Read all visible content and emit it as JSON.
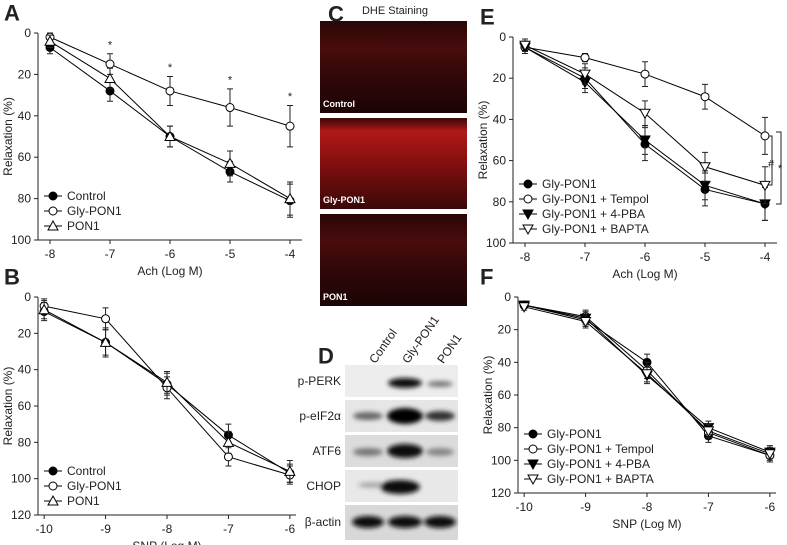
{
  "chart_data": [
    {
      "type": "line",
      "panel": "A",
      "xlabel": "Ach (Log M)",
      "ylabel": "Relaxation (%)",
      "x": [
        -8,
        -7,
        -6,
        -5,
        -4
      ],
      "xlim": [
        -8.2,
        -3.8
      ],
      "xticks": [
        -8,
        -7,
        -6,
        -5,
        -4
      ],
      "ylim": [
        0,
        100
      ],
      "yticks": [
        0,
        20,
        40,
        60,
        80,
        100
      ],
      "invert_y": true,
      "legend": "lower left",
      "series": [
        {
          "name": "Control",
          "color": "#000000",
          "marker": "circle-filled",
          "values": [
            7,
            28,
            50,
            67,
            81
          ],
          "errors": [
            3,
            5,
            5,
            5,
            8
          ]
        },
        {
          "name": "Gly-PON1",
          "color": "#000000",
          "marker": "circle-open",
          "values": [
            2,
            15,
            28,
            36,
            45
          ],
          "errors": [
            2,
            5,
            7,
            9,
            10
          ]
        },
        {
          "name": "PON1",
          "color": "#000000",
          "marker": "triangle-up-open",
          "values": [
            4,
            22,
            50,
            63,
            80
          ],
          "errors": [
            3,
            5,
            5,
            6,
            8
          ]
        }
      ],
      "annotations": [
        {
          "text": "*",
          "x": -7,
          "y": 6
        },
        {
          "text": "*",
          "x": -6,
          "y": 17
        },
        {
          "text": "*",
          "x": -5,
          "y": 23
        },
        {
          "text": "*",
          "x": -4,
          "y": 31
        }
      ]
    },
    {
      "type": "line",
      "panel": "B",
      "xlabel": "SNP (Log M)",
      "ylabel": "Relaxation (%)",
      "x": [
        -10,
        -9,
        -8,
        -7,
        -6
      ],
      "xlim": [
        -10.1,
        -5.9
      ],
      "xticks": [
        -10,
        -9,
        -8,
        -7,
        -6
      ],
      "ylim": [
        0,
        120
      ],
      "yticks": [
        0,
        20,
        40,
        60,
        80,
        100,
        120
      ],
      "invert_y": true,
      "legend": "lower left",
      "series": [
        {
          "name": "Control",
          "color": "#000000",
          "marker": "circle-filled",
          "values": [
            8,
            25,
            48,
            76,
            97
          ],
          "errors": [
            5,
            8,
            6,
            6,
            5
          ]
        },
        {
          "name": "Gly-PON1",
          "color": "#000000",
          "marker": "circle-open",
          "values": [
            5,
            12,
            50,
            88,
            98
          ],
          "errors": [
            4,
            6,
            6,
            5,
            5
          ]
        },
        {
          "name": "PON1",
          "color": "#000000",
          "marker": "triangle-up-open",
          "values": [
            7,
            25,
            47,
            80,
            96
          ],
          "errors": [
            5,
            7,
            6,
            6,
            6
          ]
        }
      ]
    },
    {
      "type": "line",
      "panel": "E",
      "xlabel": "Ach (Log M)",
      "ylabel": "Relaxation (%)",
      "x": [
        -8,
        -7,
        -6,
        -5,
        -4
      ],
      "xlim": [
        -8.2,
        -3.8
      ],
      "xticks": [
        -8,
        -7,
        -6,
        -5,
        -4
      ],
      "ylim": [
        0,
        100
      ],
      "yticks": [
        0,
        20,
        40,
        60,
        80,
        100
      ],
      "invert_y": true,
      "legend": "lower left",
      "series": [
        {
          "name": "Gly-PON1",
          "color": "#000000",
          "marker": "circle-filled",
          "values": [
            5,
            20,
            52,
            74,
            81
          ],
          "errors": [
            3,
            5,
            8,
            8,
            8
          ]
        },
        {
          "name": "Gly-PON1 + Tempol",
          "color": "#000000",
          "marker": "circle-open",
          "values": [
            5,
            10,
            18,
            29,
            48
          ],
          "errors": [
            2,
            2,
            6,
            6,
            9
          ]
        },
        {
          "name": "Gly-PON1 + 4-PBA",
          "color": "#000000",
          "marker": "triangle-down-filled",
          "values": [
            5,
            22,
            50,
            72,
            81
          ],
          "errors": [
            3,
            5,
            7,
            7,
            8
          ]
        },
        {
          "name": "Gly-PON1 + BAPTA",
          "color": "#000000",
          "marker": "triangle-down-open",
          "values": [
            4,
            18,
            37,
            63,
            72
          ],
          "errors": [
            3,
            5,
            6,
            7,
            9
          ]
        }
      ],
      "annotations": [
        {
          "text": "#",
          "x": -3.9,
          "y": 62
        },
        {
          "text": "*",
          "x": -3.75,
          "y": 64
        }
      ]
    },
    {
      "type": "line",
      "panel": "F",
      "xlabel": "SNP (Log M)",
      "ylabel": "Relaxation (%)",
      "x": [
        -10,
        -9,
        -8,
        -7,
        -6
      ],
      "xlim": [
        -10.1,
        -5.9
      ],
      "xticks": [
        -10,
        -9,
        -8,
        -7,
        -6
      ],
      "ylim": [
        0,
        120
      ],
      "yticks": [
        0,
        20,
        40,
        60,
        80,
        100,
        120
      ],
      "invert_y": true,
      "legend": "lower left",
      "series": [
        {
          "name": "Gly-PON1",
          "color": "#000000",
          "marker": "circle-filled",
          "values": [
            5,
            14,
            40,
            85,
            97
          ],
          "errors": [
            2,
            4,
            5,
            4,
            4
          ]
        },
        {
          "name": "Gly-PON1 + Tempol",
          "color": "#000000",
          "marker": "circle-open",
          "values": [
            5,
            12,
            45,
            83,
            97
          ],
          "errors": [
            2,
            4,
            5,
            4,
            4
          ]
        },
        {
          "name": "Gly-PON1 + 4-PBA",
          "color": "#000000",
          "marker": "triangle-down-filled",
          "values": [
            5,
            13,
            48,
            80,
            95
          ],
          "errors": [
            2,
            4,
            5,
            4,
            4
          ]
        },
        {
          "name": "Gly-PON1 + BAPTA",
          "color": "#000000",
          "marker": "triangle-down-open",
          "values": [
            6,
            15,
            47,
            82,
            96
          ],
          "errors": [
            2,
            4,
            5,
            4,
            4
          ]
        }
      ]
    }
  ],
  "images": {
    "C": {
      "panel": "C",
      "title": "DHE Staining",
      "labels": [
        "Control",
        "Gly-PON1",
        "PON1"
      ]
    },
    "D": {
      "panel": "D",
      "columns": [
        "Control",
        "Gly-PON1",
        "PON1"
      ],
      "rows": [
        "p-PERK",
        "p-eIF2α",
        "ATF6",
        "CHOP",
        "β-actin"
      ]
    }
  }
}
